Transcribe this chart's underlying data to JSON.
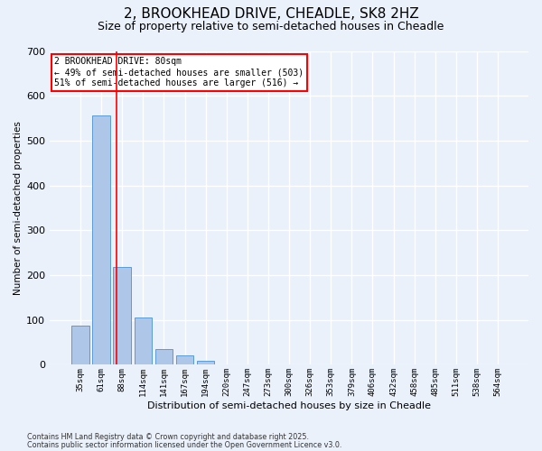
{
  "title1": "2, BROOKHEAD DRIVE, CHEADLE, SK8 2HZ",
  "title2": "Size of property relative to semi-detached houses in Cheadle",
  "xlabel": "Distribution of semi-detached houses by size in Cheadle",
  "ylabel": "Number of semi-detached properties",
  "bar_labels": [
    "35sqm",
    "61sqm",
    "88sqm",
    "114sqm",
    "141sqm",
    "167sqm",
    "194sqm",
    "220sqm",
    "247sqm",
    "273sqm",
    "300sqm",
    "326sqm",
    "353sqm",
    "379sqm",
    "406sqm",
    "432sqm",
    "458sqm",
    "485sqm",
    "511sqm",
    "538sqm",
    "564sqm"
  ],
  "bar_values": [
    88,
    557,
    218,
    106,
    35,
    21,
    9,
    0,
    0,
    0,
    0,
    0,
    0,
    0,
    0,
    0,
    0,
    0,
    0,
    0,
    0
  ],
  "bar_color": "#aec6e8",
  "bar_edgecolor": "#5b9bd5",
  "vline_x": 1.72,
  "vline_color": "red",
  "annotation_text": "2 BROOKHEAD DRIVE: 80sqm\n← 49% of semi-detached houses are smaller (503)\n51% of semi-detached houses are larger (516) →",
  "annotation_box_edgecolor": "red",
  "ylim": [
    0,
    700
  ],
  "yticks": [
    0,
    100,
    200,
    300,
    400,
    500,
    600,
    700
  ],
  "bg_color": "#eaf1fb",
  "plot_bg_color": "#eaf1fb",
  "footer1": "Contains HM Land Registry data © Crown copyright and database right 2025.",
  "footer2": "Contains public sector information licensed under the Open Government Licence v3.0.",
  "grid_color": "#ffffff",
  "title_fontsize": 11,
  "subtitle_fontsize": 9
}
